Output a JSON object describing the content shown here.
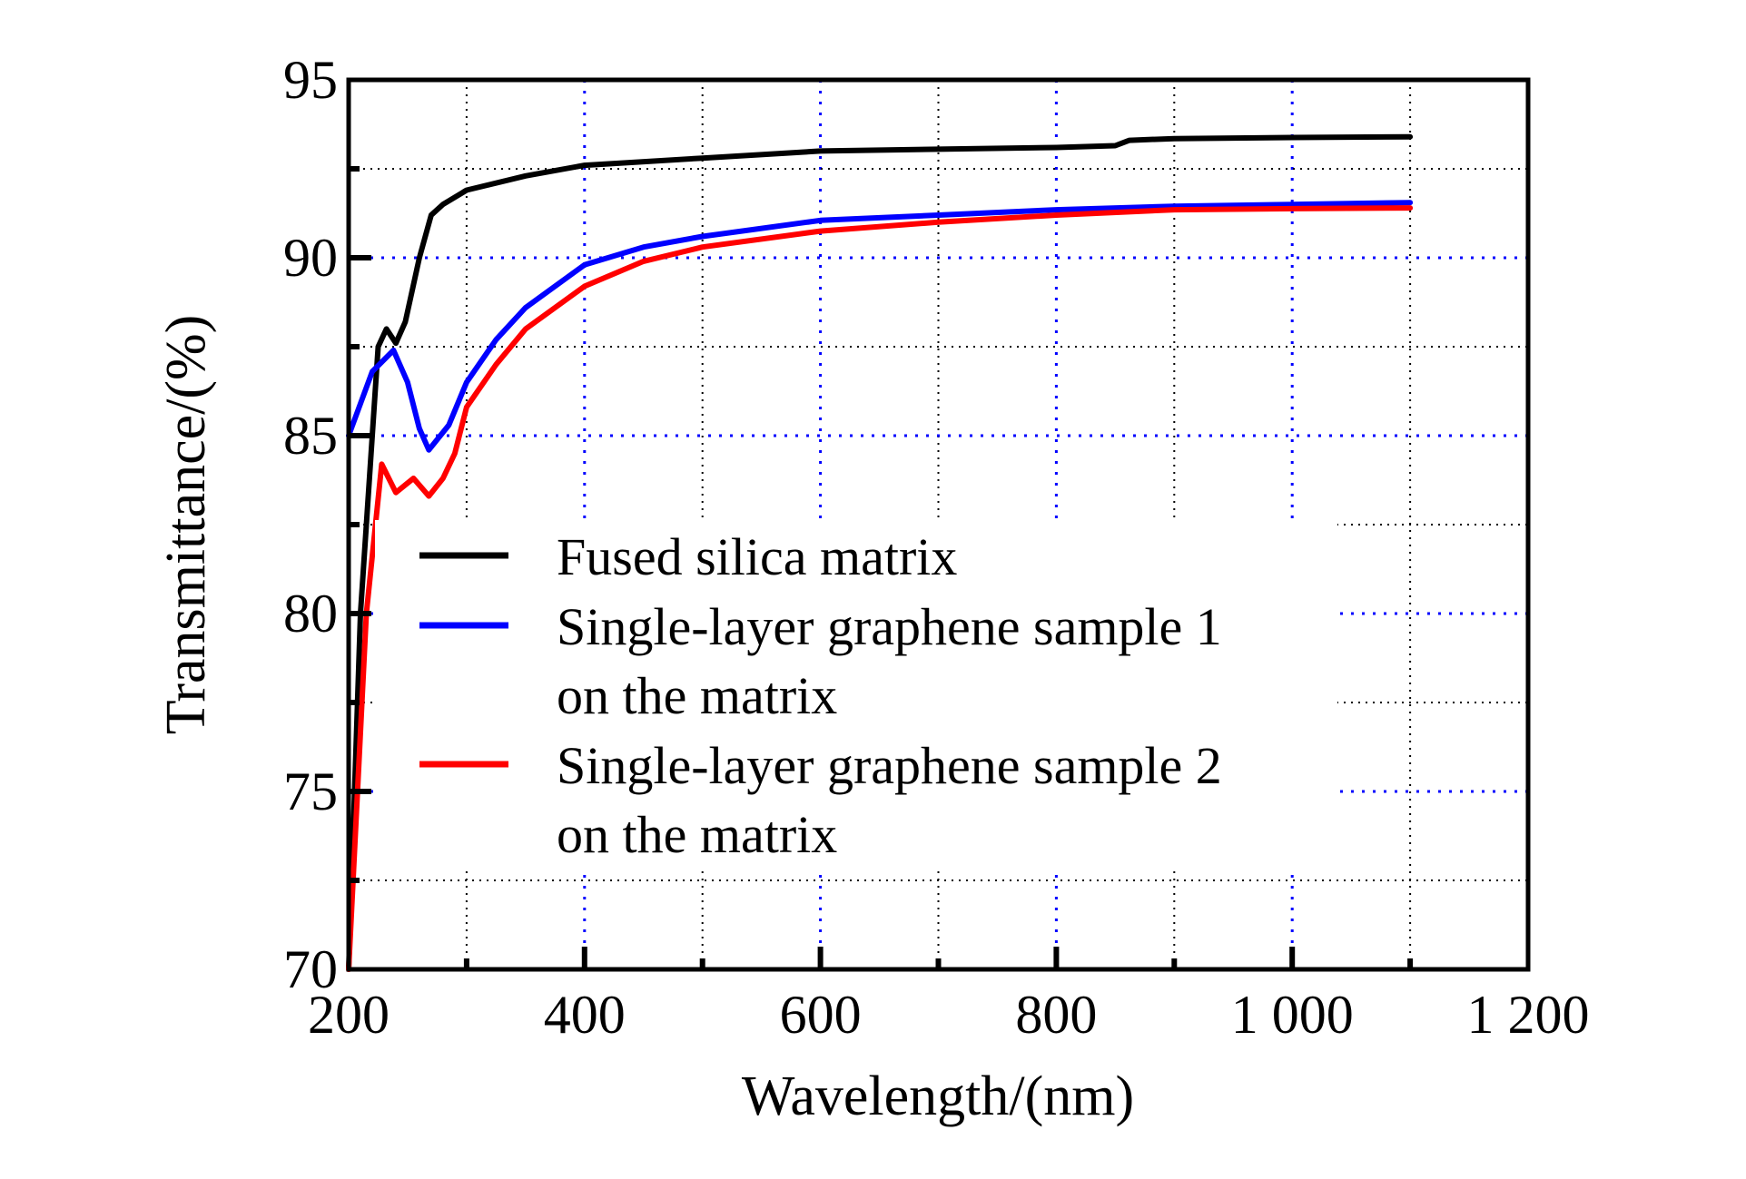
{
  "chart_data": {
    "type": "line",
    "title": "",
    "xlabel": "Wavelength/(nm)",
    "ylabel": "Transmittance/(%)",
    "xlim": [
      200,
      1200
    ],
    "ylim": [
      70,
      95
    ],
    "xticks": [
      200,
      400,
      600,
      800,
      1000,
      1200
    ],
    "xtick_labels": [
      "200",
      "400",
      "600",
      "800",
      "1 000",
      "1 200"
    ],
    "yticks": [
      70,
      75,
      80,
      85,
      90,
      95
    ],
    "ytick_labels": [
      "70",
      "75",
      "80",
      "85",
      "90",
      "95"
    ],
    "grid": true,
    "legend_placement": "center",
    "series": [
      {
        "name": "Fused silica matrix",
        "color": "#000000",
        "x": [
          200,
          210,
          225,
          232,
          240,
          248,
          260,
          270,
          280,
          300,
          350,
          400,
          500,
          600,
          700,
          800,
          850,
          862,
          900,
          1000,
          1100
        ],
        "y": [
          70,
          80,
          87.5,
          88,
          87.6,
          88.2,
          90,
          91.2,
          91.5,
          91.9,
          92.3,
          92.6,
          92.8,
          93,
          93.05,
          93.1,
          93.15,
          93.3,
          93.35,
          93.38,
          93.4
        ]
      },
      {
        "name": "Single-layer graphene sample 1 on the matrix",
        "color": "#0000ff",
        "x": [
          200,
          220,
          238,
          250,
          260,
          268,
          285,
          300,
          325,
          350,
          400,
          450,
          500,
          600,
          700,
          800,
          900,
          1000,
          1100
        ],
        "y": [
          85,
          86.8,
          87.4,
          86.5,
          85.2,
          84.6,
          85.3,
          86.5,
          87.7,
          88.6,
          89.8,
          90.3,
          90.6,
          91.05,
          91.2,
          91.35,
          91.45,
          91.5,
          91.55
        ]
      },
      {
        "name": "Single-layer graphene sample 2 on the matrix",
        "color": "#ff0000",
        "x": [
          200,
          215,
          228,
          240,
          255,
          268,
          280,
          290,
          300,
          325,
          350,
          400,
          450,
          500,
          600,
          700,
          800,
          900,
          1000,
          1100
        ],
        "y": [
          70,
          80,
          84.2,
          83.4,
          83.8,
          83.3,
          83.8,
          84.5,
          85.8,
          87,
          88,
          89.2,
          89.9,
          90.3,
          90.75,
          91.0,
          91.2,
          91.35,
          91.38,
          91.4
        ]
      }
    ],
    "legend": {
      "entries": [
        {
          "lines": [
            "Fused silica matrix"
          ]
        },
        {
          "lines": [
            "Single-layer graphene sample 1",
            "on the matrix"
          ]
        },
        {
          "lines": [
            "Single-layer graphene sample 2",
            "on the matrix"
          ]
        }
      ]
    },
    "grid_colors": {
      "major": "#0000ff",
      "minor": "#000000"
    }
  }
}
